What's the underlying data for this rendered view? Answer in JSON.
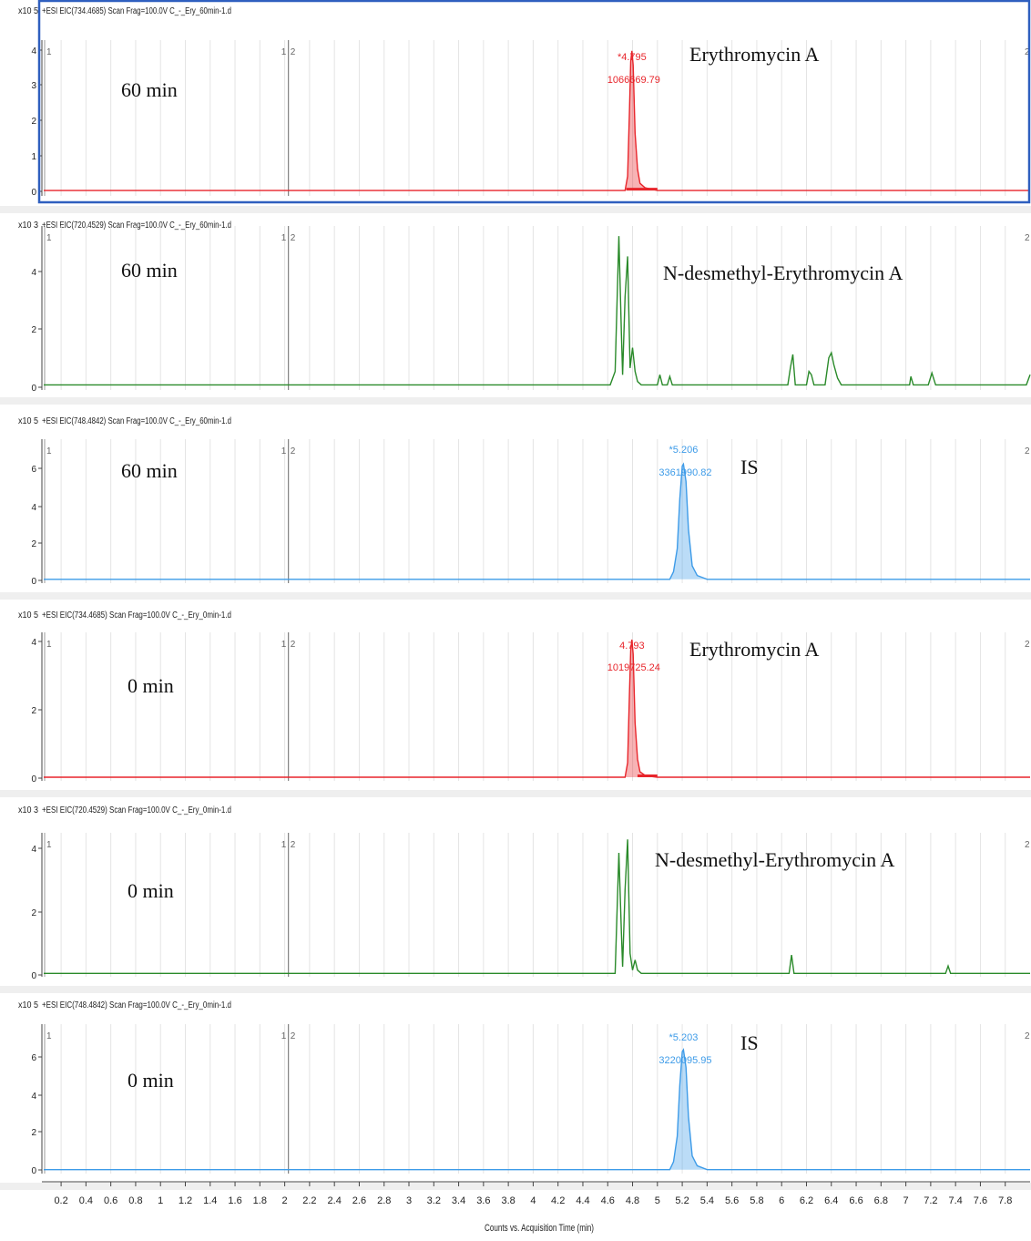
{
  "x_axis": {
    "title": "Counts vs. Acquisition Time (min)",
    "range": [
      0.06,
      8.0
    ],
    "ticks": [
      "0.2",
      "0.4",
      "0.6",
      "0.8",
      "1",
      "1.2",
      "1.4",
      "1.6",
      "1.8",
      "2",
      "2.2",
      "2.4",
      "2.6",
      "2.8",
      "3",
      "3.2",
      "3.4",
      "3.6",
      "3.8",
      "4",
      "4.2",
      "4.4",
      "4.6",
      "4.8",
      "5",
      "5.2",
      "5.4",
      "5.6",
      "5.8",
      "6",
      "6.2",
      "6.4",
      "6.6",
      "6.8",
      "7",
      "7.2",
      "7.4",
      "7.6",
      "7.8"
    ]
  },
  "colors": {
    "red": "#e8252b",
    "green": "#2a8a2a",
    "blue": "#3d9be8",
    "selected_border": "#2f5fbf"
  },
  "chart_data": [
    {
      "type": "line",
      "header": "+ESI EIC(734.4685) Scan Frag=100.0V C_-_Ery_60min-1.d",
      "y_exponent": "x10 5",
      "ylim": [
        -0.15,
        4.2
      ],
      "y_ticks": [
        "0",
        "1",
        "2",
        "3",
        "4"
      ],
      "marker_labels": [
        "1",
        "1",
        "2",
        "2"
      ],
      "annotation_time": "60 min",
      "compound_label": "Erythromycin A",
      "peak_rt_label": "*4.795",
      "peak_area_label": "1066669.79",
      "color": "red",
      "selected": true,
      "baseline_segments": [
        [
          4.75,
          5.0
        ]
      ],
      "series": [
        {
          "x": [
            0.06,
            4.74,
            4.76,
            4.775,
            4.785,
            4.795,
            4.805,
            4.82,
            4.84,
            4.86,
            4.9,
            4.95,
            5.0,
            8.0
          ],
          "y": [
            0,
            0,
            0.4,
            2.2,
            3.6,
            3.9,
            3.5,
            1.6,
            0.6,
            0.2,
            0.08,
            0.04,
            0,
            0
          ],
          "filled": true
        }
      ]
    },
    {
      "type": "line",
      "header": "+ESI EIC(720.4529) Scan Frag=100.0V C_-_Ery_60min-1.d",
      "y_exponent": "x10 3",
      "ylim": [
        -0.15,
        4.7
      ],
      "y_ticks": [
        "0",
        "2",
        "4"
      ],
      "marker_labels": [
        "1",
        "1",
        "2",
        "2"
      ],
      "annotation_time": "60 min",
      "compound_label": "N-desmethyl-Erythromycin A",
      "peak_rt_label": "",
      "peak_area_label": "",
      "color": "green",
      "selected": false,
      "baseline_segments": [],
      "series": [
        {
          "x": [
            0.06,
            4.62,
            4.66,
            4.69,
            4.71,
            4.72,
            4.74,
            4.76,
            4.78,
            4.8,
            4.82,
            4.84,
            4.87,
            5.0,
            5.02,
            5.04,
            5.08,
            5.1,
            5.12,
            6.05,
            6.07,
            6.09,
            6.11,
            6.2,
            6.22,
            6.24,
            6.26,
            6.35,
            6.38,
            6.4,
            6.42,
            6.45,
            6.48,
            7.03,
            7.04,
            7.06,
            7.18,
            7.21,
            7.24,
            7.97,
            8.0
          ],
          "y": [
            0,
            0,
            0.4,
            4.4,
            1.5,
            0.3,
            2.6,
            3.8,
            0.5,
            1.1,
            0.4,
            0.1,
            0,
            0,
            0.3,
            0,
            0,
            0.25,
            0,
            0,
            0.5,
            0.9,
            0,
            0,
            0.4,
            0.3,
            0,
            0,
            0.8,
            0.95,
            0.6,
            0.2,
            0,
            0,
            0.25,
            0,
            0,
            0.35,
            0,
            0,
            0.3
          ],
          "filled": false
        }
      ]
    },
    {
      "type": "line",
      "header": "+ESI EIC(748.4842) Scan Frag=100.0V C_-_Ery_60min-1.d",
      "y_exponent": "x10 5",
      "ylim": [
        -0.2,
        7.3
      ],
      "y_ticks": [
        "0",
        "2",
        "4",
        "6"
      ],
      "marker_labels": [
        "1",
        "1",
        "2",
        "2"
      ],
      "annotation_time": "60 min",
      "compound_label": "IS",
      "peak_rt_label": "*5.206",
      "peak_area_label": "3361990.82",
      "color": "blue",
      "selected": false,
      "baseline_segments": [],
      "series": [
        {
          "x": [
            0.06,
            5.1,
            5.13,
            5.16,
            5.18,
            5.2,
            5.21,
            5.23,
            5.25,
            5.28,
            5.32,
            5.4,
            8.0
          ],
          "y": [
            0,
            0,
            0.4,
            1.6,
            4.2,
            5.9,
            6.0,
            5.1,
            2.6,
            0.7,
            0.2,
            0,
            0
          ],
          "filled": true
        }
      ]
    },
    {
      "type": "line",
      "header": "+ESI EIC(734.4685) Scan Frag=100.0V C_-_Ery_0min-1.d",
      "y_exponent": "x10 5",
      "ylim": [
        -0.1,
        4.0
      ],
      "y_ticks": [
        "0",
        "2",
        "4"
      ],
      "marker_labels": [
        "1",
        "1",
        "2",
        "2"
      ],
      "annotation_time": "0 min",
      "compound_label": "Erythromycin A",
      "peak_rt_label": "4.793",
      "peak_area_label": "1019725.24",
      "color": "red",
      "selected": false,
      "baseline_segments": [
        [
          4.84,
          5.0
        ]
      ],
      "series": [
        {
          "x": [
            0.06,
            4.74,
            4.76,
            4.775,
            4.785,
            4.795,
            4.805,
            4.82,
            4.84,
            4.86,
            4.9,
            4.95,
            5.0,
            8.0
          ],
          "y": [
            0,
            0,
            0.4,
            2.3,
            3.5,
            3.8,
            3.4,
            1.5,
            0.5,
            0.15,
            0.05,
            0.02,
            0,
            0
          ],
          "filled": true
        }
      ]
    },
    {
      "type": "line",
      "header": "+ESI EIC(720.4529) Scan Frag=100.0V C_-_Ery_0min-1.d",
      "y_exponent": "x10 3",
      "ylim": [
        -0.1,
        4.2
      ],
      "y_ticks": [
        "0",
        "2",
        "4"
      ],
      "marker_labels": [
        "1",
        "1",
        "2",
        "2"
      ],
      "annotation_time": "0 min",
      "compound_label": "N-desmethyl-Erythromycin A",
      "peak_rt_label": "",
      "peak_area_label": "",
      "color": "green",
      "selected": false,
      "baseline_segments": [],
      "series": [
        {
          "x": [
            0.06,
            4.66,
            4.69,
            4.71,
            4.72,
            4.74,
            4.76,
            4.78,
            4.8,
            4.82,
            4.84,
            4.87,
            6.06,
            6.08,
            6.1,
            7.32,
            7.34,
            7.36,
            8.0
          ],
          "y": [
            0,
            0,
            3.6,
            1.2,
            0.2,
            2.5,
            4.0,
            0.6,
            0.1,
            0.4,
            0.1,
            0,
            0,
            0.55,
            0,
            0,
            0.22,
            0,
            0
          ],
          "filled": false
        }
      ]
    },
    {
      "type": "line",
      "header": "+ESI EIC(748.4842) Scan Frag=100.0V C_-_Ery_0min-1.d",
      "y_exponent": "x10 5",
      "ylim": [
        -0.2,
        7.4
      ],
      "y_ticks": [
        "0",
        "2",
        "4",
        "6"
      ],
      "marker_labels": [
        "1",
        "1",
        "2",
        "2"
      ],
      "annotation_time": "0 min",
      "compound_label": "IS",
      "peak_rt_label": "*5.203",
      "peak_area_label": "3220095.95",
      "color": "blue",
      "selected": false,
      "baseline_segments": [],
      "series": [
        {
          "x": [
            0.06,
            5.1,
            5.13,
            5.16,
            5.18,
            5.2,
            5.21,
            5.23,
            5.25,
            5.28,
            5.32,
            5.4,
            8.0
          ],
          "y": [
            0,
            0,
            0.4,
            1.7,
            4.3,
            6.0,
            6.1,
            5.2,
            2.7,
            0.7,
            0.2,
            0,
            0
          ],
          "filled": true
        }
      ]
    }
  ]
}
